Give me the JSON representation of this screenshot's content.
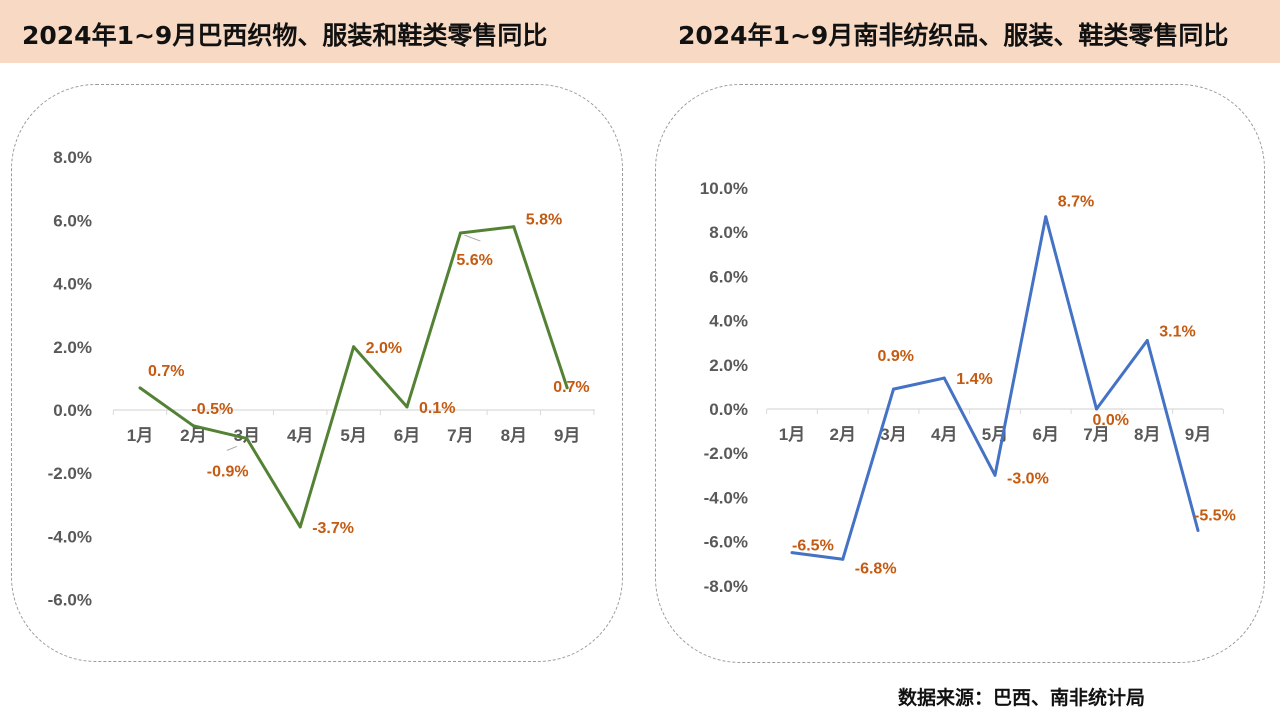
{
  "header": {
    "left_title": "2024年1~9月巴西织物、服装和鞋类零售同比",
    "right_title": "2024年1~9月南非纺织品、服装、鞋类零售同比"
  },
  "source": "数据来源：巴西、南非统计局",
  "colors": {
    "header_bg": "#f8d9c4",
    "label": "#c55a11",
    "brazil_line": "#548235",
    "sa_line": "#4472c4"
  },
  "chart_data": [
    {
      "type": "line",
      "title": "2024年1~9月巴西织物、服装和鞋类零售同比",
      "categories": [
        "1月",
        "2月",
        "3月",
        "4月",
        "5月",
        "6月",
        "7月",
        "8月",
        "9月"
      ],
      "series": [
        {
          "values": [
            0.7,
            -0.5,
            -0.9,
            -3.7,
            2.0,
            0.1,
            5.6,
            5.8,
            0.7
          ],
          "color": "#548235"
        }
      ],
      "data_labels": [
        "0.7%",
        "-0.5%",
        "-0.9%",
        "-3.7%",
        "2.0%",
        "0.1%",
        "5.6%",
        "5.8%",
        "0.7%"
      ],
      "y_ticks": [
        "8.0%",
        "6.0%",
        "4.0%",
        "2.0%",
        "0.0%",
        "-2.0%",
        "-4.0%",
        "-6.0%"
      ],
      "ylim": [
        -6,
        8
      ],
      "grid": false
    },
    {
      "type": "line",
      "title": "2024年1~9月南非纺织品、服装、鞋类零售同比",
      "categories": [
        "1月",
        "2月",
        "3月",
        "4月",
        "5月",
        "6月",
        "7月",
        "8月",
        "9月"
      ],
      "series": [
        {
          "values": [
            -6.5,
            -6.8,
            0.9,
            1.4,
            -3.0,
            8.7,
            0.0,
            3.1,
            -5.5
          ],
          "color": "#4472c4"
        }
      ],
      "data_labels": [
        "-6.5%",
        "-6.8%",
        "0.9%",
        "1.4%",
        "-3.0%",
        "8.7%",
        "0.0%",
        "3.1%",
        "-5.5%"
      ],
      "y_ticks": [
        "10.0%",
        "8.0%",
        "6.0%",
        "4.0%",
        "2.0%",
        "0.0%",
        "-2.0%",
        "-4.0%",
        "-6.0%",
        "-8.0%"
      ],
      "ylim": [
        -8,
        10
      ],
      "grid": false
    }
  ]
}
